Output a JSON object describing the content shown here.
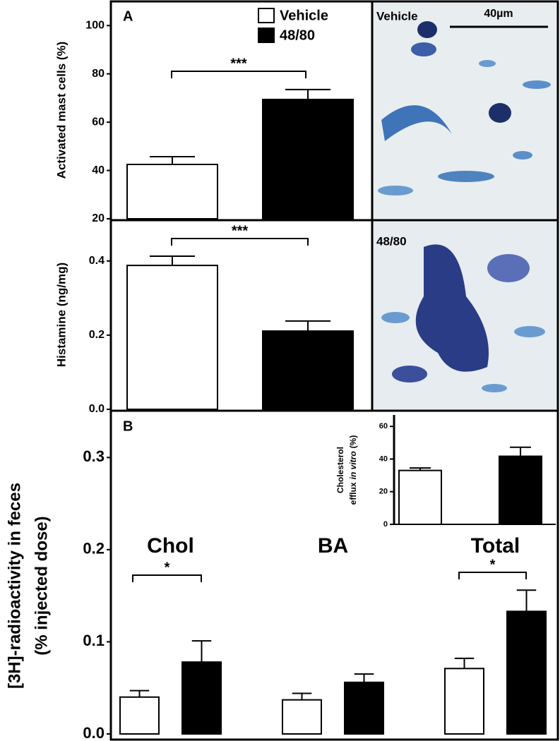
{
  "chart_data": [
    {
      "type": "bar",
      "panel": "A",
      "y_label": "Activated mast cells (%)",
      "legend": true,
      "series": [
        {
          "name": "Vehicle",
          "color": "#ffffff",
          "values": [
            42.5
          ],
          "errors": [
            3.2
          ]
        },
        {
          "name": "48/80",
          "color": "#000000",
          "values": [
            69.4
          ],
          "errors": [
            4.1
          ]
        }
      ],
      "ylim": [
        20,
        110
      ],
      "yticks": [
        20,
        40,
        60,
        80,
        100
      ],
      "significance": "***"
    },
    {
      "type": "bar",
      "y_label": "Histamine (ng/mg)",
      "series": [
        {
          "color": "#ffffff",
          "values": [
            0.388
          ],
          "errors": [
            0.025
          ]
        },
        {
          "color": "#000000",
          "values": [
            0.211
          ],
          "errors": [
            0.027
          ]
        }
      ],
      "ylim": [
        0,
        0.51
      ],
      "yticks": [
        {
          "value": 0,
          "label": "0.0"
        },
        0.2,
        0.4
      ],
      "significance": "***"
    },
    {
      "type": "bar",
      "panel": "B",
      "y_label": [
        "[3H]-radioactivity in feces",
        "(% injected dose)"
      ],
      "categories": [
        "Chol",
        "BA",
        "Total"
      ],
      "series": [
        {
          "color": "#ffffff",
          "values": [
            0.04,
            0.037,
            0.071
          ],
          "errors": [
            0.007,
            0.007,
            0.011
          ]
        },
        {
          "color": "#000000",
          "values": [
            0.078,
            0.056,
            0.133
          ],
          "errors": [
            0.023,
            0.009,
            0.023
          ]
        }
      ],
      "ylim": [
        0,
        0.35
      ],
      "yticks": [
        {
          "value": 0,
          "label": "0.0"
        },
        0.1,
        0.2,
        0.3
      ],
      "significance": [
        "*",
        null,
        "*"
      ]
    },
    {
      "type": "bar",
      "y_label": [
        "Cholesterol",
        [
          "efflux",
          "in vitro",
          "(%)"
        ]
      ],
      "series": [
        {
          "color": "#ffffff",
          "values": [
            33
          ],
          "errors": [
            1.5
          ]
        },
        {
          "color": "#000000",
          "values": [
            41.7
          ],
          "errors": [
            5.5
          ]
        }
      ],
      "ylim": [
        0,
        67
      ],
      "yticks": [
        0,
        20,
        40,
        60
      ]
    }
  ],
  "micrographs": [
    {
      "label": "Vehicle",
      "scale_bar": "40µm"
    },
    {
      "label": "48/80"
    }
  ]
}
